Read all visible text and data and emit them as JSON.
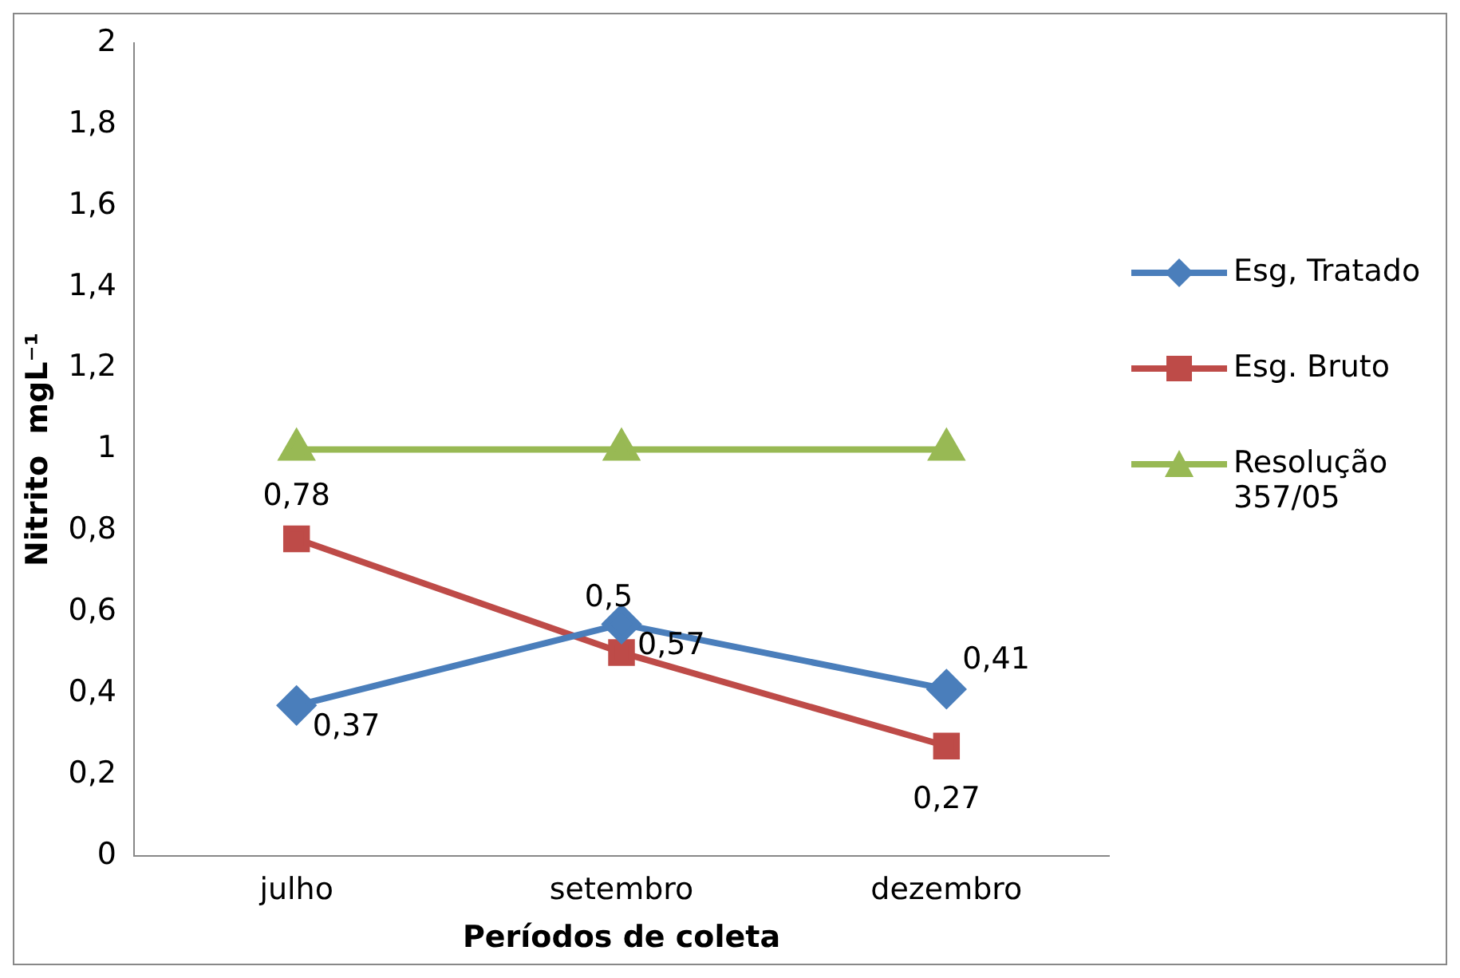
{
  "chart_data": {
    "type": "line",
    "xlabel": "Períodos de coleta",
    "ylabel": "Nitrito  mgL⁻¹",
    "categories": [
      "julho",
      "setembro",
      "dezembro"
    ],
    "series": [
      {
        "name": "Esg, Tratado",
        "color": "#4a7ebb",
        "marker": "diamond",
        "values": [
          0.37,
          0.57,
          0.41
        ],
        "value_labels": [
          "0,37",
          "0,57",
          "0,41"
        ]
      },
      {
        "name": "Esg. Bruto",
        "color": "#be4b48",
        "marker": "square",
        "values": [
          0.78,
          0.5,
          0.27
        ],
        "value_labels": [
          "0,78",
          "0,5",
          "0,27"
        ]
      },
      {
        "name": "Resolução 357/05",
        "color": "#98b954",
        "marker": "triangle",
        "values": [
          1,
          1,
          1
        ]
      }
    ],
    "ylim": [
      0,
      2
    ],
    "yticks": [
      0,
      {
        "value": 0.2,
        "label": "0,2"
      },
      {
        "value": 0.4,
        "label": "0,4"
      },
      {
        "value": 0.6,
        "label": "0,6"
      },
      {
        "value": 0.8,
        "label": "0,8"
      },
      1,
      {
        "value": 1.2,
        "label": "1,2"
      },
      {
        "value": 1.4,
        "label": "1,4"
      },
      {
        "value": 1.6,
        "label": "1,6"
      },
      {
        "value": 1.8,
        "label": "1,8"
      },
      2
    ],
    "grid": false,
    "legend": "right"
  }
}
